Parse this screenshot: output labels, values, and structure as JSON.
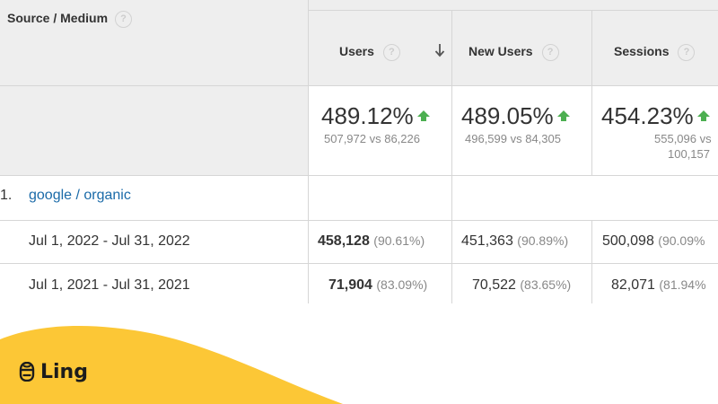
{
  "table": {
    "dimension_header": "Source / Medium",
    "help_glyph": "?",
    "metrics": [
      {
        "label": "Users",
        "pct": "489.12%",
        "vs": "507,972 vs 86,226"
      },
      {
        "label": "New Users",
        "pct": "489.05%",
        "vs": "496,599 vs 84,305"
      },
      {
        "label": "Sessions",
        "pct": "454.23%",
        "vs_line1": "555,096 vs",
        "vs_line2": "100,157"
      }
    ],
    "group_row": {
      "number": "1.",
      "label": "google / organic"
    },
    "rows": [
      {
        "label": "Jul 1, 2022 - Jul 31, 2022",
        "users": "458,128",
        "users_share": "(90.61%)",
        "new_users": "451,363",
        "new_users_share": "(90.89%)",
        "sessions": "500,098",
        "sessions_share": "(90.09%"
      },
      {
        "label": "Jul 1, 2021 - Jul 31, 2021",
        "users": "71,904",
        "users_share": "(83.09%)",
        "new_users": "70,522",
        "new_users_share": "(83.65%)",
        "sessions": "82,071",
        "sessions_share": "(81.94%"
      }
    ]
  },
  "brand": {
    "name": "Ling",
    "wave_color": "#fcc736",
    "icon": "mascot-icon"
  },
  "colors": {
    "up_arrow": "#4caf50",
    "link": "#1a6aa8",
    "header_bg": "#eeeeee"
  }
}
